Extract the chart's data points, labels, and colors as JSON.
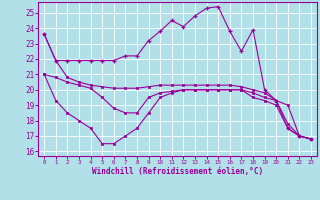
{
  "xlabel": "Windchill (Refroidissement éolien,°C)",
  "xlim": [
    -0.5,
    23.5
  ],
  "ylim": [
    15.7,
    25.7
  ],
  "yticks": [
    16,
    17,
    18,
    19,
    20,
    21,
    22,
    23,
    24,
    25
  ],
  "xticks": [
    0,
    1,
    2,
    3,
    4,
    5,
    6,
    7,
    8,
    9,
    10,
    11,
    12,
    13,
    14,
    15,
    16,
    17,
    18,
    19,
    20,
    21,
    22,
    23
  ],
  "bg_color": "#b2e0e8",
  "grid_color": "#ffffff",
  "line_color": "#990099",
  "line1": {
    "y": [
      23.6,
      21.9,
      21.9,
      21.9,
      21.9,
      21.9,
      21.9,
      22.2,
      22.2,
      23.2,
      23.8,
      24.5,
      24.1,
      24.8,
      25.3,
      25.4,
      23.8,
      22.5,
      23.9,
      20.0,
      19.3,
      17.5,
      17.0,
      16.8
    ]
  },
  "line2": {
    "y": [
      23.6,
      21.9,
      20.8,
      20.5,
      20.3,
      20.2,
      20.1,
      20.1,
      20.1,
      20.2,
      20.3,
      20.3,
      20.3,
      20.3,
      20.3,
      20.3,
      20.3,
      20.2,
      20.0,
      19.8,
      19.3,
      19.0,
      17.0,
      16.8
    ]
  },
  "line3": {
    "y": [
      21.0,
      20.8,
      20.5,
      20.3,
      20.1,
      19.5,
      18.8,
      18.5,
      18.5,
      19.5,
      19.8,
      19.9,
      20.0,
      20.0,
      20.0,
      20.0,
      20.0,
      20.0,
      19.8,
      19.5,
      19.3,
      17.8,
      17.0,
      16.8
    ]
  },
  "line4": {
    "y": [
      21.0,
      19.3,
      18.5,
      18.0,
      17.5,
      16.5,
      16.5,
      17.0,
      17.5,
      18.5,
      19.5,
      19.8,
      20.0,
      20.0,
      20.0,
      20.0,
      20.0,
      20.0,
      19.5,
      19.3,
      19.0,
      17.5,
      17.0,
      16.8
    ]
  }
}
